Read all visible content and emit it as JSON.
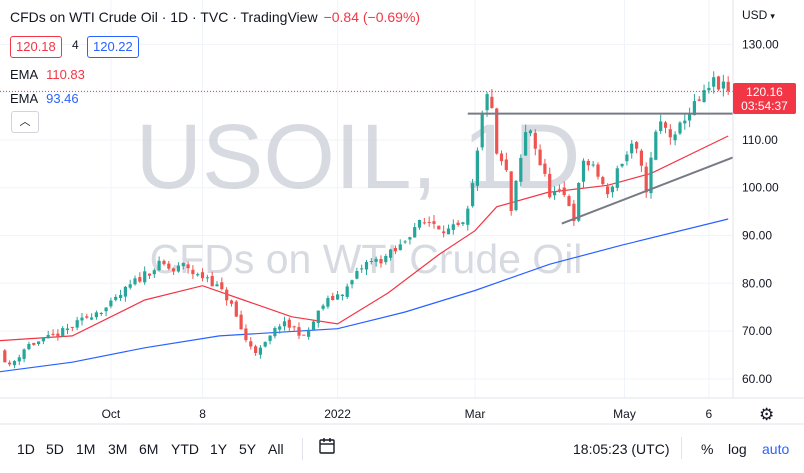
{
  "header": {
    "title": "CFDs on WTI Crude Oil · 1D · TVC · TradingView",
    "change": "−0.84 (−0.69%)",
    "sell_price": "120.18",
    "spread": "4",
    "buy_price": "120.22"
  },
  "indicators": [
    {
      "name": "EMA",
      "value": "110.83",
      "color": "#f23645"
    },
    {
      "name": "EMA",
      "value": "93.46",
      "color": "#2962ff"
    }
  ],
  "currency": "USD",
  "watermark": {
    "symbol": "USOIL, 1D",
    "name": "CFDs on WTI Crude Oil"
  },
  "last_price": {
    "value": "120.16",
    "countdown": "03:54:37",
    "color": "#f23645"
  },
  "toolbar": {
    "ranges": [
      "1D",
      "5D",
      "1M",
      "3M",
      "6M",
      "YTD",
      "1Y",
      "5Y",
      "All"
    ],
    "time": "18:05:23 (UTC)",
    "percent_label": "%",
    "log_label": "log",
    "auto_label": "auto",
    "accent": "#2962ff"
  },
  "chart_data": {
    "type": "candlestick",
    "x_range": [
      "2021-08-16",
      "2022-06-16"
    ],
    "ylim": [
      56,
      133
    ],
    "y_ticks": [
      60,
      70,
      80,
      90,
      100,
      110,
      120,
      130
    ],
    "y_tick_labels": [
      "60.00",
      "70.00",
      "80.00",
      "90.00",
      "100.00",
      "110.00",
      "120.00",
      "130.00"
    ],
    "x_ticks": [
      {
        "date": "2021-10-01",
        "label": "Oct"
      },
      {
        "date": "2021-11-08",
        "label": "8"
      },
      {
        "date": "2022-01-03",
        "label": "2022"
      },
      {
        "date": "2022-03-01",
        "label": "Mar"
      },
      {
        "date": "2022-05-02",
        "label": "May"
      },
      {
        "date": "2022-06-06",
        "label": "6"
      }
    ],
    "up_color": "#26a69a",
    "down_color": "#ef5350",
    "candle_every_days": 2,
    "close_path": [
      [
        "2021-08-16",
        66
      ],
      [
        "2021-08-20",
        62.5
      ],
      [
        "2021-08-27",
        67
      ],
      [
        "2021-09-03",
        68
      ],
      [
        "2021-09-10",
        69.5
      ],
      [
        "2021-09-17",
        71.5
      ],
      [
        "2021-09-24",
        74
      ],
      [
        "2021-09-30",
        75
      ],
      [
        "2021-10-08",
        79
      ],
      [
        "2021-10-15",
        82
      ],
      [
        "2021-10-22",
        84
      ],
      [
        "2021-10-27",
        82.5
      ],
      [
        "2021-11-01",
        84
      ],
      [
        "2021-11-05",
        81.5
      ],
      [
        "2021-11-10",
        81.4
      ],
      [
        "2021-11-19",
        76.5
      ],
      [
        "2021-11-26",
        68
      ],
      [
        "2021-12-01",
        65.5
      ],
      [
        "2021-12-03",
        66.5
      ],
      [
        "2021-12-10",
        71.5
      ],
      [
        "2021-12-17",
        70.5
      ],
      [
        "2021-12-20",
        68.5
      ],
      [
        "2021-12-28",
        75.5
      ],
      [
        "2022-01-07",
        79
      ],
      [
        "2022-01-14",
        84
      ],
      [
        "2022-01-21",
        85
      ],
      [
        "2022-01-28",
        87
      ],
      [
        "2022-02-04",
        92
      ],
      [
        "2022-02-11",
        93
      ],
      [
        "2022-02-18",
        91
      ],
      [
        "2022-02-25",
        92
      ],
      [
        "2022-03-01",
        103
      ],
      [
        "2022-03-04",
        115
      ],
      [
        "2022-03-07",
        123
      ],
      [
        "2022-03-09",
        108
      ],
      [
        "2022-03-14",
        103
      ],
      [
        "2022-03-16",
        95
      ],
      [
        "2022-03-23",
        114
      ],
      [
        "2022-03-28",
        105
      ],
      [
        "2022-04-01",
        99
      ],
      [
        "2022-04-08",
        98
      ],
      [
        "2022-04-11",
        94
      ],
      [
        "2022-04-15",
        106
      ],
      [
        "2022-04-22",
        102
      ],
      [
        "2022-04-25",
        98
      ],
      [
        "2022-04-29",
        104
      ],
      [
        "2022-05-06",
        109
      ],
      [
        "2022-05-11",
        100
      ],
      [
        "2022-05-16",
        114
      ],
      [
        "2022-05-23",
        110
      ],
      [
        "2022-05-27",
        115
      ],
      [
        "2022-06-03",
        118.5
      ],
      [
        "2022-06-08",
        122
      ],
      [
        "2022-06-14",
        120.16
      ]
    ],
    "series": [
      {
        "name": "EMA",
        "value_label": "110.83",
        "color": "#f23645",
        "points": [
          [
            "2021-08-16",
            68
          ],
          [
            "2021-09-15",
            69
          ],
          [
            "2021-10-15",
            76.5
          ],
          [
            "2021-11-08",
            79.5
          ],
          [
            "2021-11-25",
            76.5
          ],
          [
            "2021-12-15",
            73
          ],
          [
            "2022-01-03",
            71.5
          ],
          [
            "2022-01-24",
            78
          ],
          [
            "2022-02-14",
            86
          ],
          [
            "2022-03-01",
            91
          ],
          [
            "2022-03-10",
            96
          ],
          [
            "2022-03-31",
            99
          ],
          [
            "2022-04-25",
            100.5
          ],
          [
            "2022-05-13",
            103
          ],
          [
            "2022-06-14",
            110.83
          ]
        ]
      },
      {
        "name": "EMA",
        "value_label": "93.46",
        "color": "#2962ff",
        "points": [
          [
            "2021-08-16",
            61.5
          ],
          [
            "2021-09-15",
            63.5
          ],
          [
            "2021-10-15",
            66.5
          ],
          [
            "2021-11-15",
            69
          ],
          [
            "2022-01-03",
            70.5
          ],
          [
            "2022-01-31",
            74
          ],
          [
            "2022-03-01",
            78.5
          ],
          [
            "2022-04-01",
            84
          ],
          [
            "2022-05-01",
            88
          ],
          [
            "2022-06-14",
            93.46
          ]
        ]
      }
    ],
    "annotations": [
      {
        "type": "horizontal-resistance",
        "from": "2022-02-26",
        "to": "2022-06-22",
        "y": 115.5,
        "color": "#787b86"
      },
      {
        "type": "ascending-trendline",
        "from": [
          "2022-04-06",
          92.5
        ],
        "to": [
          "2022-06-22",
          107.5
        ],
        "color": "#787b86"
      }
    ]
  }
}
